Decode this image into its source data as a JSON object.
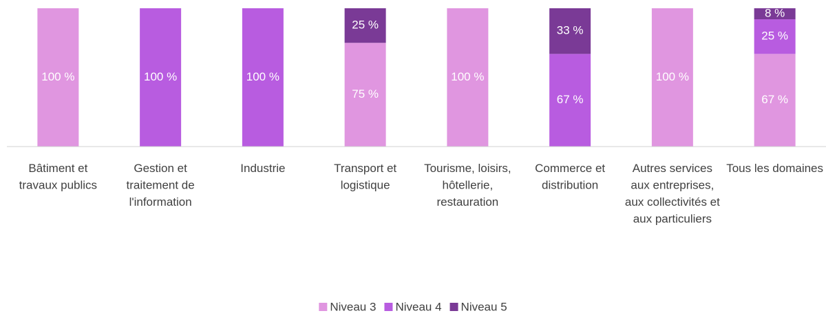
{
  "chart_data": {
    "type": "stacked_bar",
    "categories": [
      "Bâtiment et travaux publics",
      "Gestion et traitement de l'information",
      "Industrie",
      "Transport et logistique",
      "Tourisme, loisirs, hôtellerie, restauration",
      "Commerce et distribution",
      "Autres services aux entreprises, aux collectivités et aux particuliers",
      "Tous les domaines"
    ],
    "series": [
      {
        "name": "Niveau 3",
        "color": "#e096e0",
        "values": [
          100,
          null,
          null,
          75,
          100,
          null,
          100,
          67
        ],
        "value_labels": [
          "100 %",
          null,
          null,
          "75 %",
          "100 %",
          null,
          "100 %",
          "67 %"
        ]
      },
      {
        "name": "Niveau 4",
        "color": "#b85ce0",
        "values": [
          null,
          100,
          100,
          null,
          null,
          67,
          null,
          25
        ],
        "value_labels": [
          null,
          "100 %",
          "100 %",
          null,
          null,
          "67 %",
          null,
          "25 %"
        ]
      },
      {
        "name": "Niveau 5",
        "color": "#7a3a96",
        "values": [
          null,
          null,
          null,
          25,
          null,
          33,
          null,
          8
        ],
        "value_labels": [
          null,
          null,
          null,
          "25 %",
          null,
          "33 %",
          null,
          "8 %"
        ]
      }
    ],
    "ylim": [
      0,
      100
    ],
    "legend": "bottom"
  }
}
